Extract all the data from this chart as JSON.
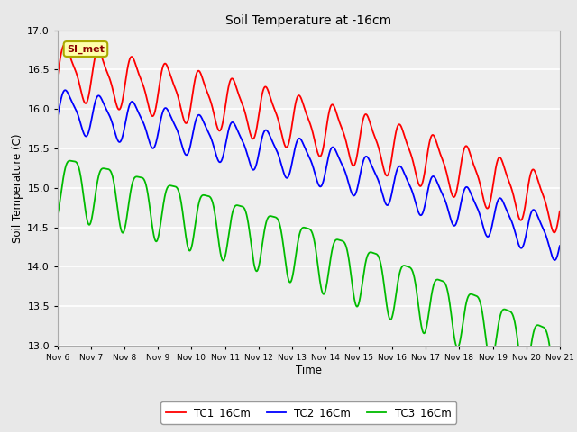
{
  "title": "Soil Temperature at -16cm",
  "xlabel": "Time",
  "ylabel": "Soil Temperature (C)",
  "ylim": [
    13.0,
    17.0
  ],
  "yticks": [
    13.0,
    13.5,
    14.0,
    14.5,
    15.0,
    15.5,
    16.0,
    16.5,
    17.0
  ],
  "xtick_labels": [
    "Nov 6",
    "Nov 7",
    "Nov 8",
    "Nov 9",
    "Nov 10",
    "Nov 11",
    "Nov 12",
    "Nov 13",
    "Nov 14",
    "Nov 15",
    "Nov 16",
    "Nov 17",
    "Nov 18",
    "Nov 19",
    "Nov 20",
    "Nov 21"
  ],
  "colors": {
    "TC1": "#ff0000",
    "TC2": "#0000ff",
    "TC3": "#00bb00",
    "background": "#e8e8e8",
    "plot_bg": "#eeeeee"
  },
  "legend_labels": [
    "TC1_16Cm",
    "TC2_16Cm",
    "TC3_16Cm"
  ],
  "annotation_text": "SI_met",
  "annotation_color": "#8B0000",
  "annotation_bg": "#ffffaa",
  "annotation_border": "#aaaa00"
}
